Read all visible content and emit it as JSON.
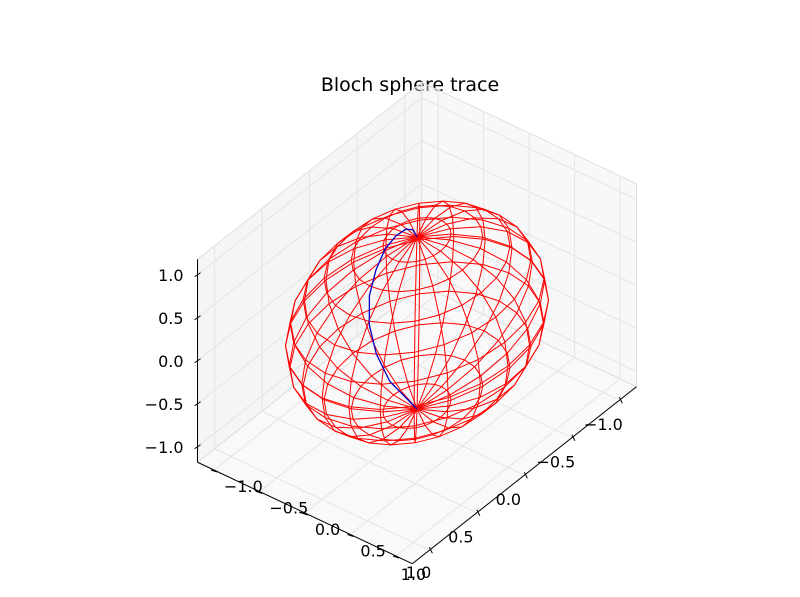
{
  "chart_data": {
    "type": "3d-wireframe",
    "title": "Bloch sphere trace",
    "xlabel": "",
    "ylabel": "",
    "zlabel": "",
    "xlim": [
      -1.0,
      1.0
    ],
    "ylim": [
      -1.0,
      1.0
    ],
    "zlim": [
      -1.0,
      1.0
    ],
    "x_ticks": [
      "1.0",
      "0.5",
      "0.0",
      "−0.5",
      "−1.0"
    ],
    "y_ticks": [
      "−1.0",
      "−0.5",
      "0.0",
      "0.5",
      "1.0"
    ],
    "z_ticks": [
      "−1.0",
      "−0.5",
      "0.0",
      "0.5",
      "1.0"
    ],
    "grid": true,
    "sphere": {
      "radius": 1.0,
      "color": "#ff0000",
      "meridians": 24,
      "parallels": 12
    },
    "trace": {
      "color": "#0000cc",
      "points": [
        [
          0.0,
          0.0,
          1.0
        ],
        [
          -0.08,
          -0.13,
          0.95
        ],
        [
          -0.15,
          -0.28,
          0.82
        ],
        [
          -0.2,
          -0.44,
          0.62
        ],
        [
          -0.22,
          -0.58,
          0.38
        ],
        [
          -0.21,
          -0.67,
          0.1
        ],
        [
          -0.17,
          -0.7,
          -0.18
        ],
        [
          -0.12,
          -0.65,
          -0.45
        ],
        [
          -0.07,
          -0.52,
          -0.68
        ],
        [
          -0.03,
          -0.33,
          -0.87
        ],
        [
          0.0,
          0.0,
          -1.0
        ]
      ]
    }
  }
}
